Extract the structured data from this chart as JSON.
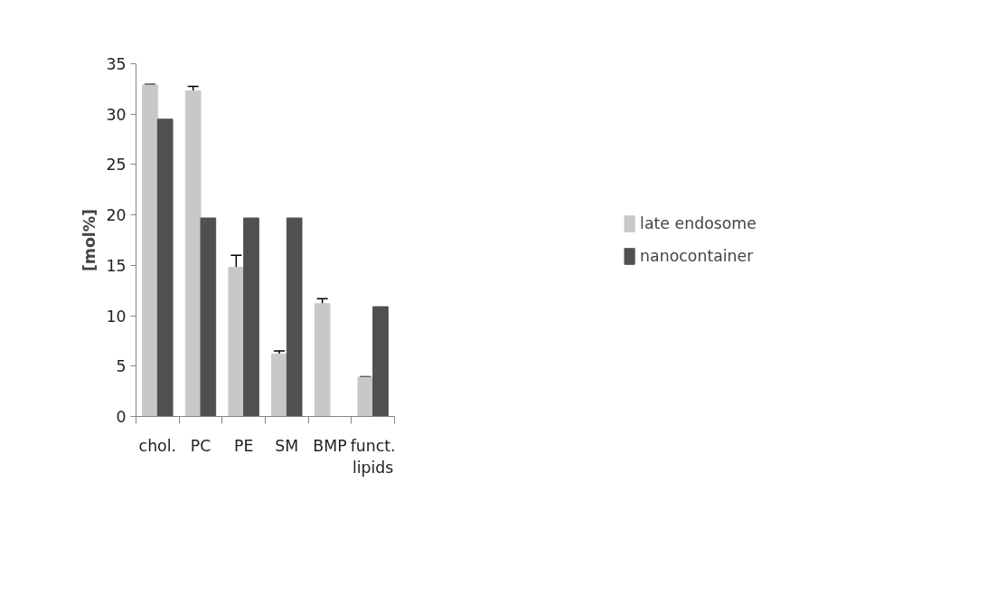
{
  "chart_data": {
    "type": "bar",
    "ylabel": "[mol%]",
    "categories": [
      "chol.",
      "PC",
      "PE",
      "SM",
      "BMP",
      "funct.\nlipids"
    ],
    "series": [
      {
        "name": "late endosome",
        "color": "#c8c8c8",
        "values": [
          32.9,
          32.3,
          14.8,
          6.2,
          11.2,
          3.9
        ],
        "errors": [
          0.05,
          0.45,
          1.2,
          0.3,
          0.5,
          0.05
        ]
      },
      {
        "name": "nanocontainer",
        "color": "#505050",
        "values": [
          29.5,
          19.7,
          19.7,
          19.7,
          0,
          10.9
        ]
      }
    ],
    "ylim": [
      0,
      35
    ],
    "yticks": [
      0,
      5,
      10,
      15,
      20,
      25,
      30,
      35
    ],
    "grid": false,
    "legend": "right"
  }
}
